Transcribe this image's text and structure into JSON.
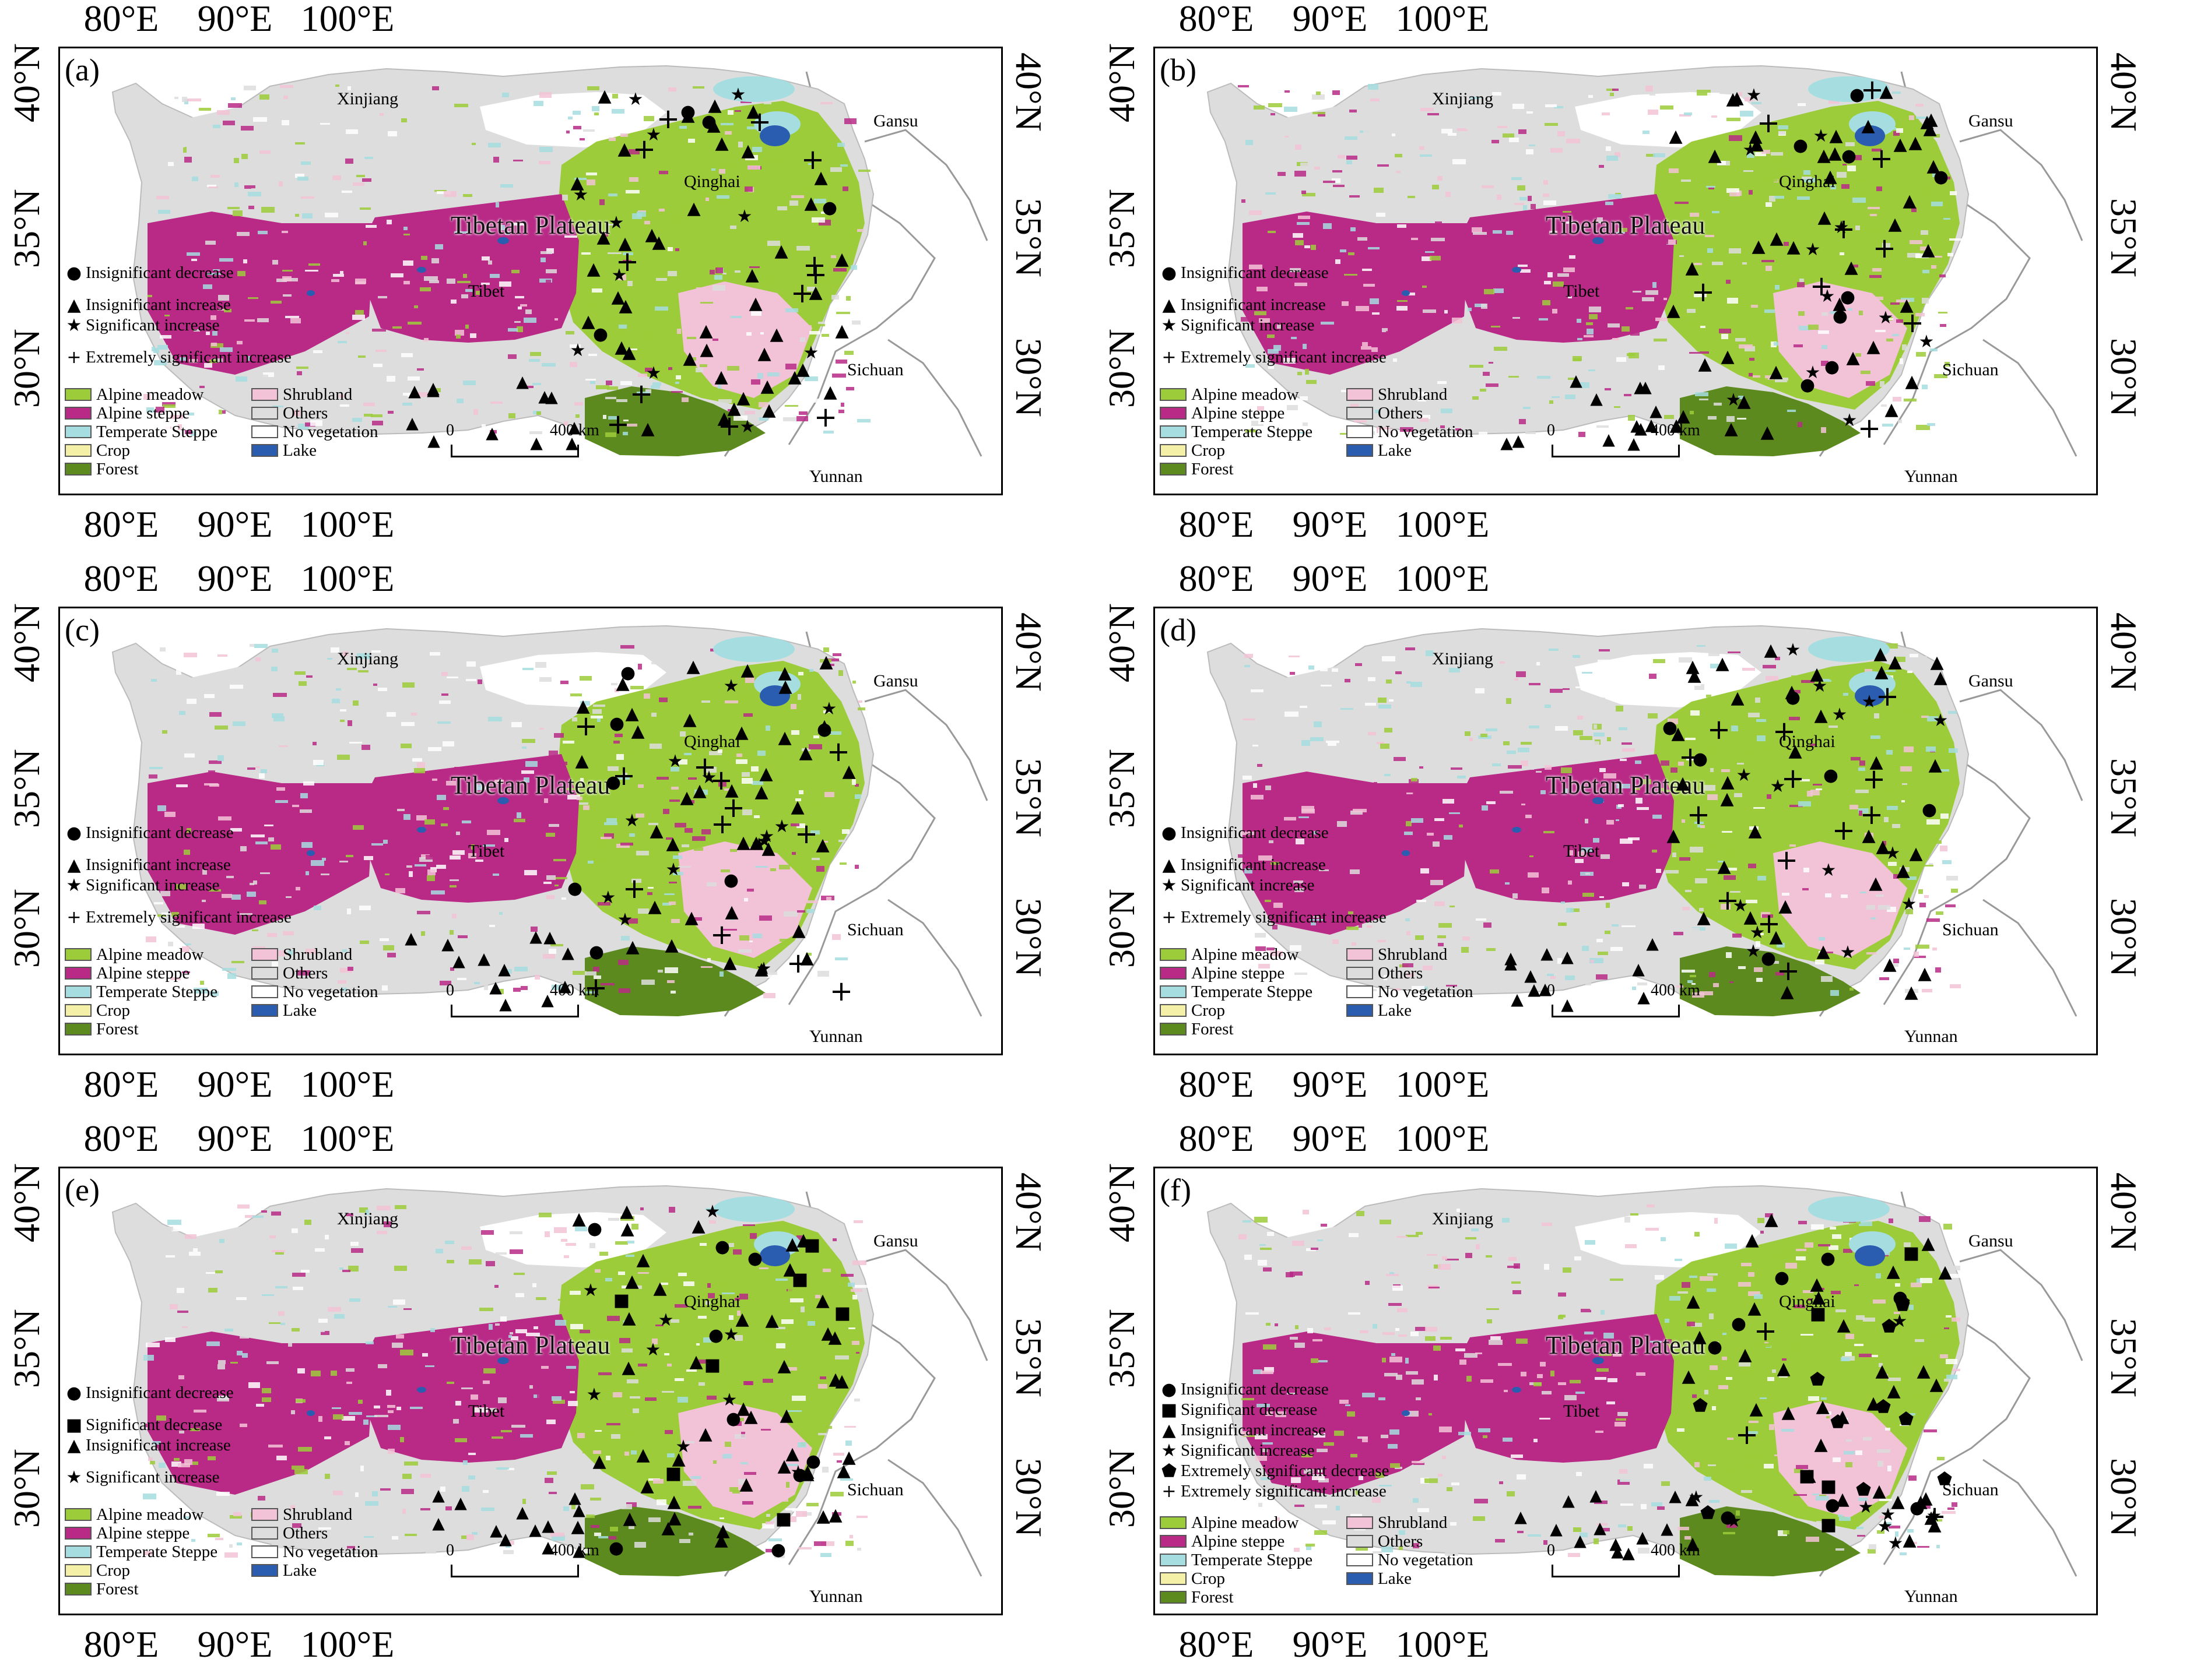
{
  "axes": {
    "lon_labels": [
      "80°E",
      "90°E",
      "100°E"
    ],
    "lat_labels": [
      "40°N",
      "35°N",
      "30°N"
    ]
  },
  "regions": {
    "xinjiang": "Xinjiang",
    "gansu": "Gansu",
    "qinghai": "Qinghai",
    "plateau": "Tibetan Plateau",
    "tibet": "Tibet",
    "sichuan": "Sichuan",
    "yunnan": "Yunnan"
  },
  "land_cover_legend": [
    {
      "label": "Alpine meadow",
      "color": "#9ccc3a"
    },
    {
      "label": "Shrubland",
      "color": "#f2c3d6"
    },
    {
      "label": "Alpine steppe",
      "color": "#b82a86"
    },
    {
      "label": "Others",
      "color": "#dddddd"
    },
    {
      "label": "Temperate Steppe",
      "color": "#a6dde0"
    },
    {
      "label": "No vegetation",
      "color": "#ffffff"
    },
    {
      "label": "Crop",
      "color": "#f4f0a8"
    },
    {
      "label": "Lake",
      "color": "#2a5cb0"
    },
    {
      "label": "Forest",
      "color": "#5d8a1f"
    }
  ],
  "symbols": {
    "insig_decrease": {
      "icon": "circle",
      "label": "Insignificant decrease"
    },
    "sig_decrease": {
      "icon": "square",
      "label": "Significant decrease"
    },
    "insig_increase": {
      "icon": "triangle",
      "label": "Insignificant increase"
    },
    "sig_increase": {
      "icon": "star",
      "label": "Significant increase"
    },
    "ext_sig_decrease": {
      "icon": "pentagon",
      "label": "Extremely significant decrease"
    },
    "ext_sig_increase": {
      "icon": "plus",
      "label": "Extremely significant increase"
    }
  },
  "scale_bar": {
    "start": "0",
    "end": "400 km"
  },
  "panels": [
    {
      "label": "(a)",
      "legend_keys": [
        "insig_decrease",
        "insig_increase",
        "sig_increase",
        "ext_sig_increase"
      ]
    },
    {
      "label": "(b)",
      "legend_keys": [
        "insig_decrease",
        "insig_increase",
        "sig_increase",
        "ext_sig_increase"
      ]
    },
    {
      "label": "(c)",
      "legend_keys": [
        "insig_decrease",
        "insig_increase",
        "sig_increase",
        "ext_sig_increase"
      ]
    },
    {
      "label": "(d)",
      "legend_keys": [
        "insig_decrease",
        "insig_increase",
        "sig_increase",
        "ext_sig_increase"
      ]
    },
    {
      "label": "(e)",
      "legend_keys": [
        "insig_decrease",
        "sig_decrease",
        "insig_increase",
        "sig_increase"
      ]
    },
    {
      "label": "(f)",
      "legend_keys": [
        "insig_decrease",
        "sig_decrease",
        "insig_increase",
        "sig_increase",
        "ext_sig_decrease",
        "ext_sig_increase"
      ]
    }
  ]
}
